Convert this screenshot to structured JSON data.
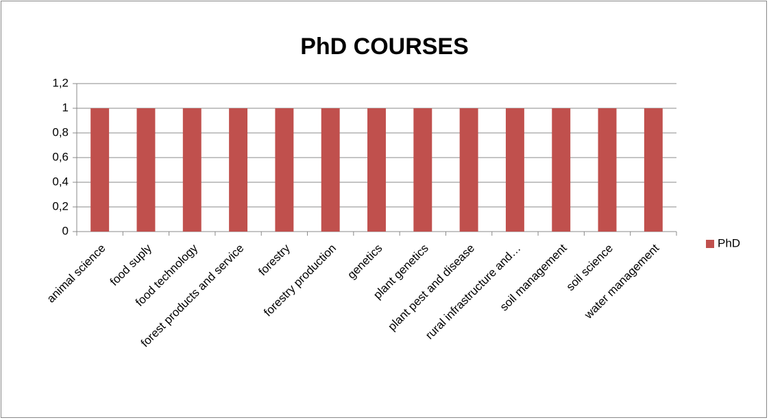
{
  "chart_data": {
    "type": "bar",
    "title": "PhD COURSES",
    "categories": [
      "animal science",
      "food suply",
      "food technology",
      "forest products and service",
      "forestry",
      "forestry production",
      "genetics",
      "plant genetics",
      "plant pest and disease",
      "rural infrastructure and…",
      "soil management",
      "soil science",
      "water management"
    ],
    "series": [
      {
        "name": "PhD",
        "color": "#c0504d",
        "values": [
          1,
          1,
          1,
          1,
          1,
          1,
          1,
          1,
          1,
          1,
          1,
          1,
          1
        ]
      }
    ],
    "ylim": [
      0,
      1.2
    ],
    "yticks": [
      0,
      {
        "value": 0.2,
        "label": "0,2"
      },
      {
        "value": 0.4,
        "label": "0,4"
      },
      {
        "value": 0.6,
        "label": "0,6"
      },
      {
        "value": 0.8,
        "label": "0,8"
      },
      1,
      {
        "value": 1.2,
        "label": "1,2"
      }
    ],
    "grid": true,
    "legend": "right"
  }
}
